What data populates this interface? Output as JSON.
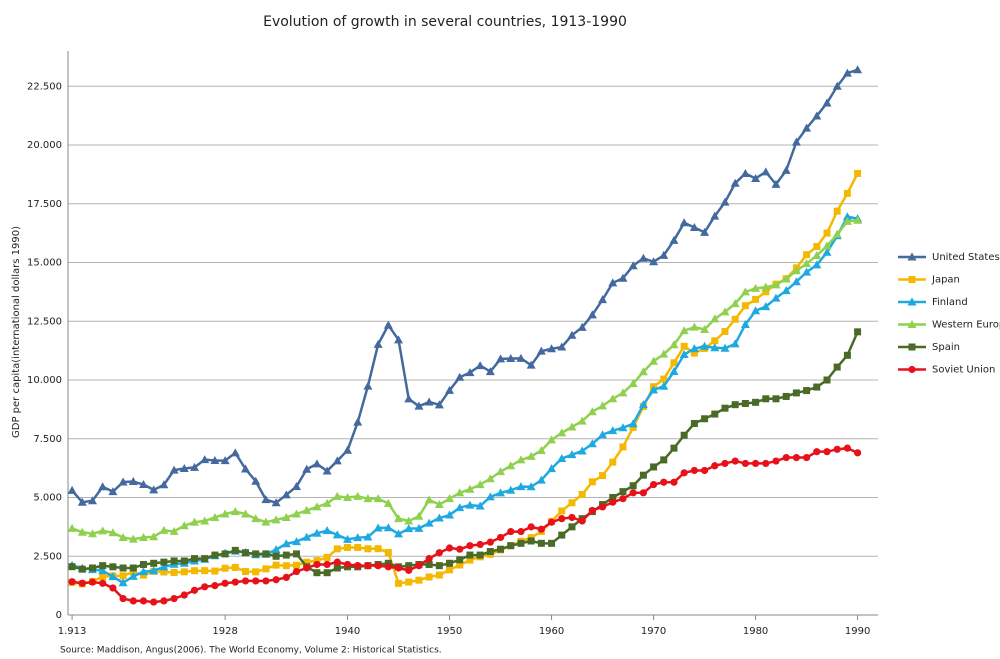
{
  "chart_data": {
    "type": "line",
    "title": "Evolution of growth in several countries, 1913-1990",
    "y_label": "GDP per capita(international dollars 1990)",
    "source": "Source: Maddison, Angus(2006). The World Economy, Volume 2: Historical Statistics.",
    "x": [
      1913,
      1914,
      1915,
      1916,
      1917,
      1918,
      1919,
      1920,
      1921,
      1922,
      1923,
      1924,
      1925,
      1926,
      1927,
      1928,
      1929,
      1930,
      1931,
      1932,
      1933,
      1934,
      1935,
      1936,
      1937,
      1938,
      1939,
      1940,
      1941,
      1942,
      1943,
      1944,
      1945,
      1946,
      1947,
      1948,
      1949,
      1950,
      1951,
      1952,
      1953,
      1954,
      1955,
      1956,
      1957,
      1958,
      1959,
      1960,
      1961,
      1962,
      1963,
      1964,
      1965,
      1966,
      1967,
      1968,
      1969,
      1970,
      1971,
      1972,
      1973,
      1974,
      1975,
      1976,
      1977,
      1978,
      1979,
      1980,
      1981,
      1982,
      1983,
      1984,
      1985,
      1986,
      1987,
      1988,
      1989,
      1990
    ],
    "xlim": [
      1912.6,
      1992
    ],
    "xticks": [
      {
        "value": 1913,
        "label": "1.913"
      },
      1928,
      1940,
      1950,
      1960,
      1970,
      1980,
      1990
    ],
    "ylim": [
      0,
      24000
    ],
    "yticks": [
      0,
      {
        "value": 2500,
        "label": "2.500"
      },
      {
        "value": 5000,
        "label": "5.000"
      },
      {
        "value": 7500,
        "label": "7.500"
      },
      {
        "value": 10000,
        "label": "10.000"
      },
      {
        "value": 12500,
        "label": "12.500"
      },
      {
        "value": 15000,
        "label": "15.000"
      },
      {
        "value": 17500,
        "label": "17.500"
      },
      {
        "value": 20000,
        "label": "20.000"
      },
      {
        "value": 22500,
        "label": "22.500"
      }
    ],
    "grid": true,
    "legend": "right",
    "series": [
      {
        "name": "United States",
        "color": "#44699e",
        "marker": "triangle",
        "values": [
          5301,
          4799,
          4864,
          5459,
          5248,
          5659,
          5680,
          5552,
          5323,
          5540,
          6164,
          6233,
          6282,
          6612,
          6576,
          6569,
          6899,
          6213,
          5691,
          4908,
          4777,
          5114,
          5467,
          6204,
          6430,
          6126,
          6561,
          7010,
          8206,
          9741,
          11518,
          12333,
          11709,
          9197,
          8886,
          9065,
          8944,
          9561,
          10116,
          10316,
          10613,
          10359,
          10897,
          10914,
          10920,
          10631,
          11230,
          11328,
          11402,
          11905,
          12242,
          12773,
          13419,
          14134,
          14330,
          14863,
          15179,
          15030,
          15304,
          15944,
          16689,
          16491,
          16284,
          16975,
          17567,
          18373,
          18789,
          18577,
          18856,
          18325,
          18920,
          20123,
          20717,
          21236,
          21788,
          22499,
          23059,
          23201
        ]
      },
      {
        "name": "Japan",
        "color": "#f5b800",
        "marker": "square",
        "values": [
          1387,
          1327,
          1430,
          1630,
          1665,
          1668,
          1827,
          1696,
          1860,
          1831,
          1809,
          1836,
          1885,
          1885,
          1870,
          1991,
          2026,
          1850,
          1837,
          1962,
          2122,
          2098,
          2120,
          2244,
          2315,
          2449,
          2816,
          2874,
          2873,
          2818,
          2822,
          2659,
          1346,
          1402,
          1482,
          1619,
          1700,
          1921,
          2126,
          2336,
          2474,
          2582,
          2771,
          2948,
          3136,
          3289,
          3554,
          3986,
          4426,
          4777,
          5129,
          5668,
          5934,
          6506,
          7152,
          7983,
          8874,
          9714,
          10040,
          10734,
          11434,
          11145,
          11344,
          11669,
          12064,
          12585,
          13163,
          13428,
          13754,
          14078,
          14307,
          14773,
          15331,
          15679,
          16251,
          17185,
          17943,
          18789
        ]
      },
      {
        "name": "Finland",
        "color": "#1eaae0",
        "marker": "triangle",
        "values": [
          2111,
          1995,
          1933,
          1886,
          1631,
          1370,
          1646,
          1846,
          1883,
          2047,
          2158,
          2201,
          2297,
          2373,
          2520,
          2635,
          2717,
          2666,
          2566,
          2587,
          2782,
          3032,
          3124,
          3307,
          3480,
          3589,
          3408,
          3220,
          3290,
          3318,
          3703,
          3713,
          3450,
          3674,
          3688,
          3907,
          4126,
          4253,
          4571,
          4674,
          4640,
          5024,
          5197,
          5309,
          5463,
          5457,
          5740,
          6230,
          6658,
          6823,
          6980,
          7287,
          7670,
          7845,
          7970,
          8139,
          8951,
          9577,
          9735,
          10362,
          11085,
          11333,
          11435,
          11371,
          11349,
          11536,
          12363,
          12949,
          13120,
          13482,
          13802,
          14182,
          14590,
          14897,
          15435,
          16136,
          16946,
          16866
        ]
      },
      {
        "name": "Western Europe",
        "color": "#8fd14f",
        "marker": "triangle",
        "values": [
          3688,
          3520,
          3460,
          3580,
          3500,
          3300,
          3230,
          3300,
          3330,
          3600,
          3560,
          3800,
          3950,
          4000,
          4150,
          4300,
          4400,
          4300,
          4100,
          3950,
          4050,
          4150,
          4300,
          4450,
          4600,
          4750,
          5050,
          5000,
          5050,
          4950,
          4950,
          4750,
          4100,
          4000,
          4200,
          4900,
          4700,
          4950,
          5200,
          5350,
          5550,
          5800,
          6100,
          6350,
          6600,
          6750,
          7000,
          7450,
          7750,
          8000,
          8250,
          8650,
          8900,
          9200,
          9450,
          9850,
          10350,
          10800,
          11100,
          11500,
          12100,
          12250,
          12150,
          12600,
          12900,
          13250,
          13750,
          13900,
          13950,
          14050,
          14300,
          14650,
          14950,
          15300,
          15700,
          16200,
          16750,
          16800
        ]
      },
      {
        "name": "Spain",
        "color": "#4a6a27",
        "marker": "square",
        "values": [
          2056,
          1950,
          2000,
          2100,
          2050,
          2000,
          2000,
          2150,
          2200,
          2250,
          2300,
          2300,
          2400,
          2400,
          2550,
          2600,
          2750,
          2650,
          2600,
          2600,
          2500,
          2550,
          2600,
          2050,
          1800,
          1800,
          2000,
          2050,
          2050,
          2100,
          2150,
          2200,
          2050,
          2100,
          2150,
          2150,
          2100,
          2200,
          2350,
          2550,
          2550,
          2700,
          2800,
          2950,
          3050,
          3150,
          3050,
          3050,
          3400,
          3750,
          4100,
          4400,
          4700,
          5000,
          5250,
          5500,
          5950,
          6300,
          6600,
          7100,
          7650,
          8150,
          8350,
          8550,
          8800,
          8950,
          9000,
          9050,
          9200,
          9200,
          9300,
          9450,
          9550,
          9700,
          10000,
          10550,
          11050,
          12050
        ]
      },
      {
        "name": "Soviet Union",
        "color": "#e8111a",
        "marker": "circle",
        "values": [
          1414,
          1350,
          1400,
          1350,
          1150,
          700,
          600,
          600,
          550,
          600,
          700,
          850,
          1050,
          1200,
          1250,
          1350,
          1400,
          1450,
          1450,
          1450,
          1500,
          1600,
          1850,
          2000,
          2150,
          2150,
          2250,
          2150,
          2100,
          2100,
          2100,
          2050,
          2000,
          1900,
          2100,
          2400,
          2650,
          2850,
          2800,
          2950,
          3000,
          3100,
          3300,
          3550,
          3550,
          3750,
          3650,
          3950,
          4100,
          4150,
          4000,
          4450,
          4600,
          4800,
          4950,
          5200,
          5200,
          5550,
          5650,
          5650,
          6050,
          6150,
          6150,
          6350,
          6450,
          6550,
          6450,
          6450,
          6450,
          6550,
          6700,
          6700,
          6700,
          6950,
          6950,
          7050,
          7100,
          6900
        ]
      }
    ]
  }
}
